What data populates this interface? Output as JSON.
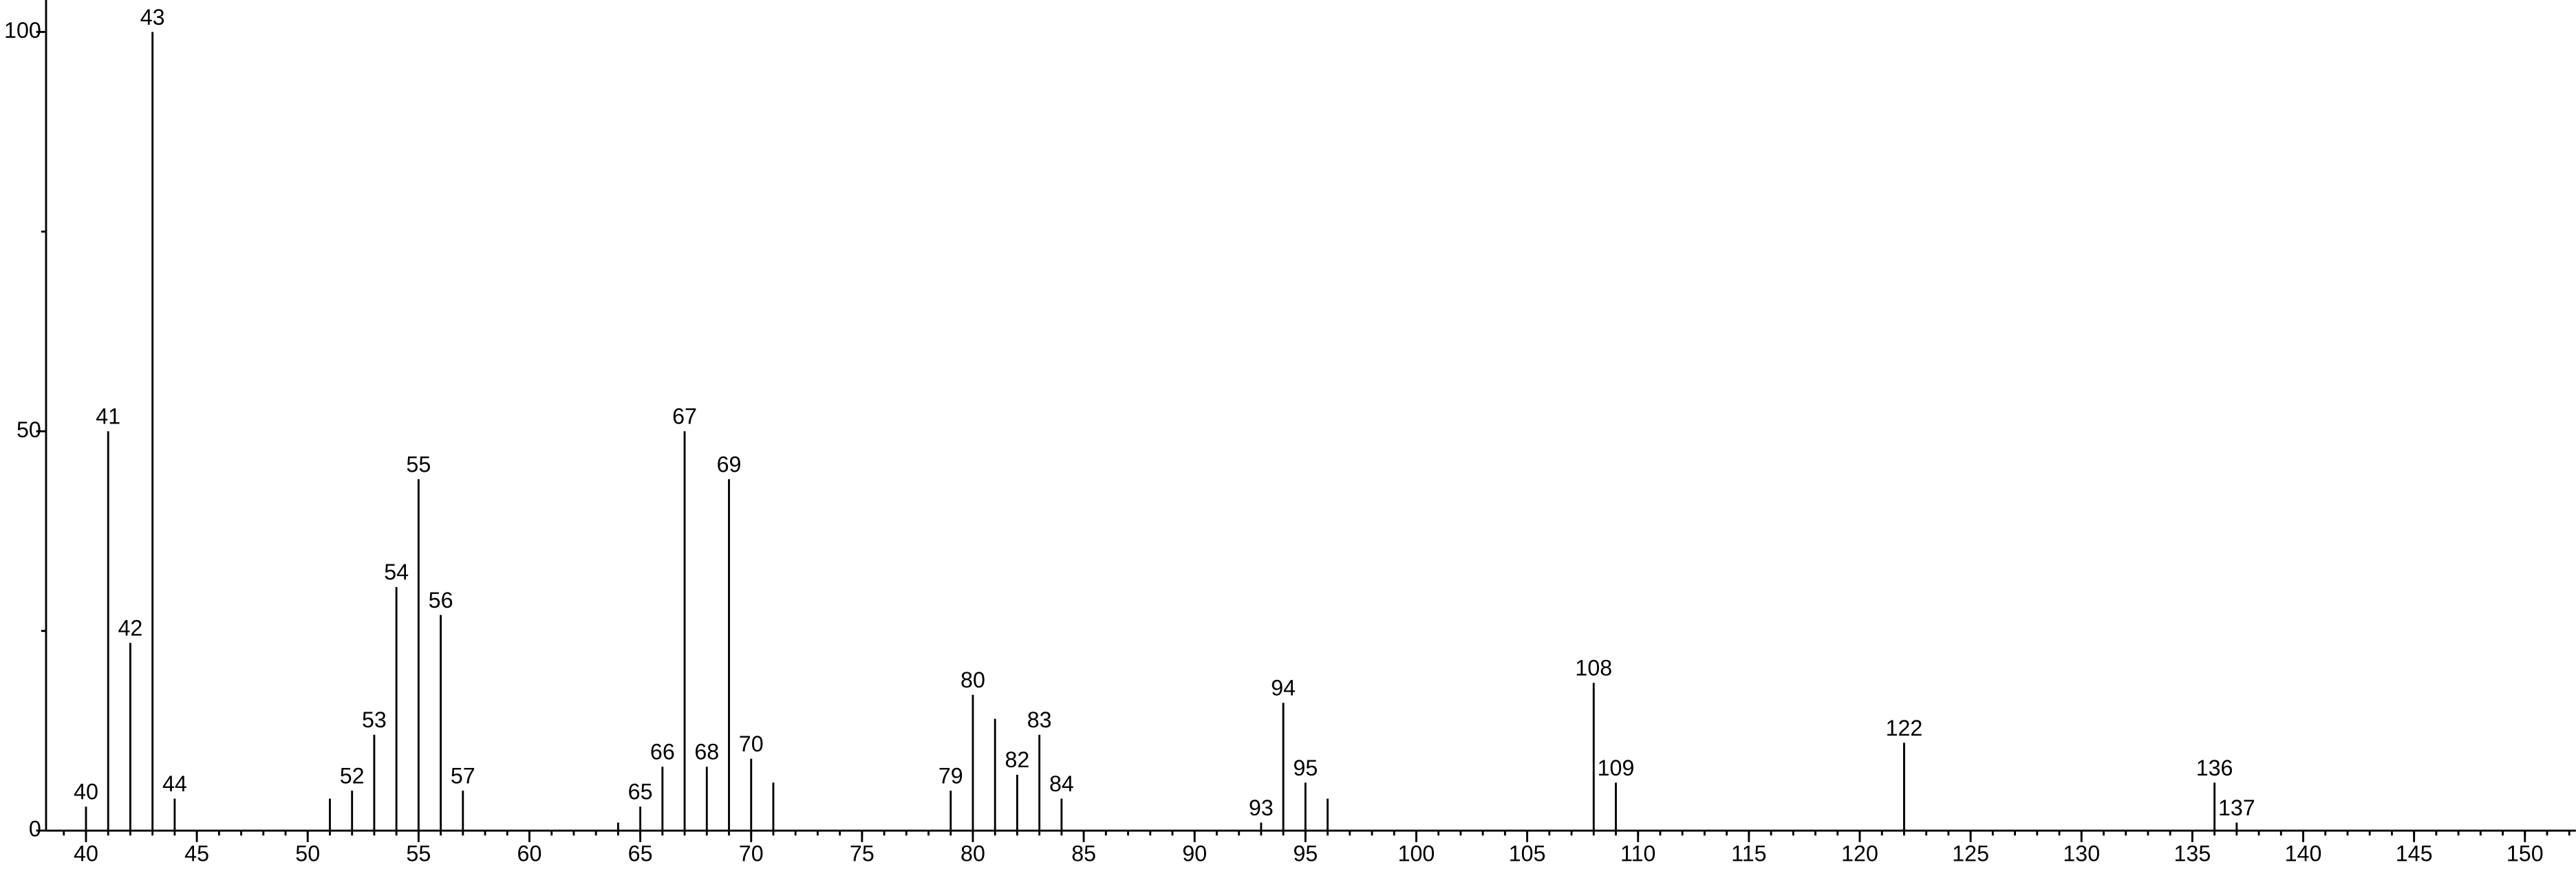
{
  "chart_data": {
    "type": "stem",
    "x": [
      40,
      41,
      42,
      43,
      44,
      51,
      52,
      53,
      54,
      55,
      56,
      57,
      64,
      65,
      66,
      67,
      68,
      69,
      70,
      71,
      79,
      80,
      81,
      82,
      83,
      84,
      93,
      94,
      95,
      96,
      108,
      109,
      122,
      136,
      137
    ],
    "values": [
      3,
      50,
      23.5,
      100,
      4,
      4,
      5,
      12,
      30.5,
      44,
      27,
      5,
      1,
      3,
      8,
      50,
      8,
      44,
      9,
      6,
      5,
      17,
      14,
      7,
      12,
      4,
      1,
      16,
      6,
      4,
      18.5,
      6,
      11,
      6,
      1
    ],
    "labels": [
      "40",
      "41",
      "42",
      "43",
      "44",
      null,
      "52",
      "53",
      "54",
      "55",
      "56",
      "57",
      null,
      "65",
      "66",
      "67",
      "68",
      "69",
      "70",
      null,
      "79",
      "80",
      null,
      "82",
      "83",
      "84",
      "93",
      "94",
      "95",
      null,
      "108",
      "109",
      "122",
      "136",
      "137"
    ],
    "color": "#000000",
    "xlim": [
      38.2,
      152.3
    ],
    "ylim": [
      0,
      104
    ],
    "xticks": [
      40,
      45,
      50,
      55,
      60,
      65,
      70,
      75,
      80,
      85,
      90,
      95,
      100,
      105,
      110,
      115,
      120,
      125,
      130,
      135,
      140,
      145,
      150
    ],
    "xminor_step": 1,
    "yticks": [
      0,
      50,
      100
    ],
    "yminor_ticks": [
      25,
      75
    ]
  }
}
